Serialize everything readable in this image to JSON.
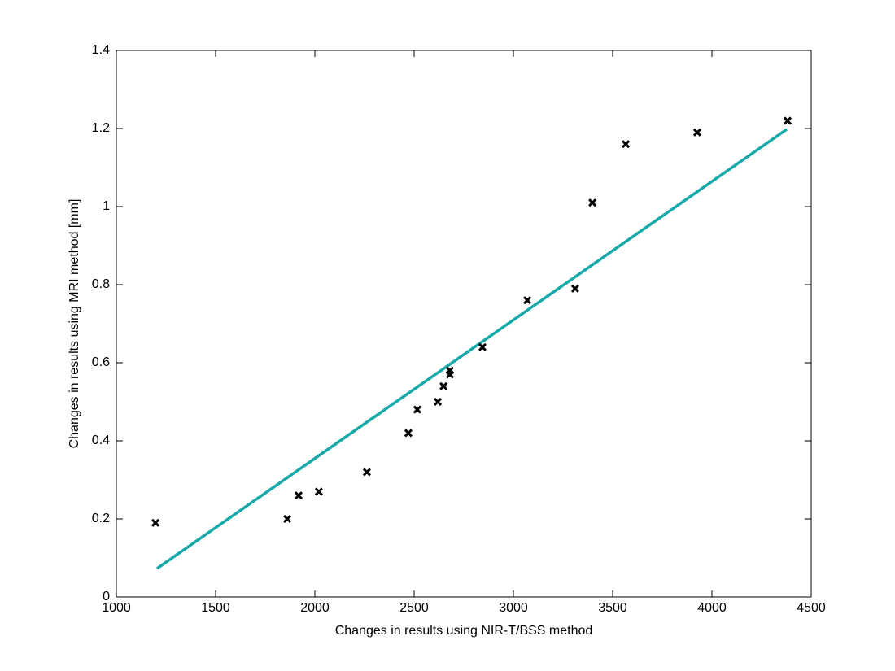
{
  "chart_data": {
    "type": "scatter",
    "xlabel": "Changes in results using NIR-T/BSS method",
    "ylabel": "Changes in results using MRI method [mm]",
    "xlim": [
      1000,
      4500
    ],
    "xticks": [
      1000,
      1500,
      2000,
      2500,
      3000,
      3500,
      4000,
      4500
    ],
    "ylim": [
      0,
      1.4
    ],
    "yticks": [
      0,
      0.2,
      0.4,
      0.6,
      0.8,
      1,
      1.2,
      1.4
    ],
    "grid": false,
    "series": [
      {
        "mode": "line",
        "color": "#17a9a9",
        "x": [
          1205,
          4377
        ],
        "values": [
          0.073,
          1.198
        ]
      },
      {
        "mode": "markers",
        "color": "#000000",
        "x": [
          1197,
          1861,
          1918,
          2020,
          2262,
          2471,
          2516,
          2619,
          2648,
          2680,
          2680,
          2844,
          3070,
          3311,
          3398,
          3566,
          3926,
          4381
        ],
        "values": [
          0.19,
          0.2,
          0.26,
          0.27,
          0.32,
          0.42,
          0.48,
          0.5,
          0.54,
          0.57,
          0.58,
          0.64,
          0.76,
          0.79,
          1.01,
          1.16,
          1.19,
          1.22
        ]
      }
    ]
  }
}
